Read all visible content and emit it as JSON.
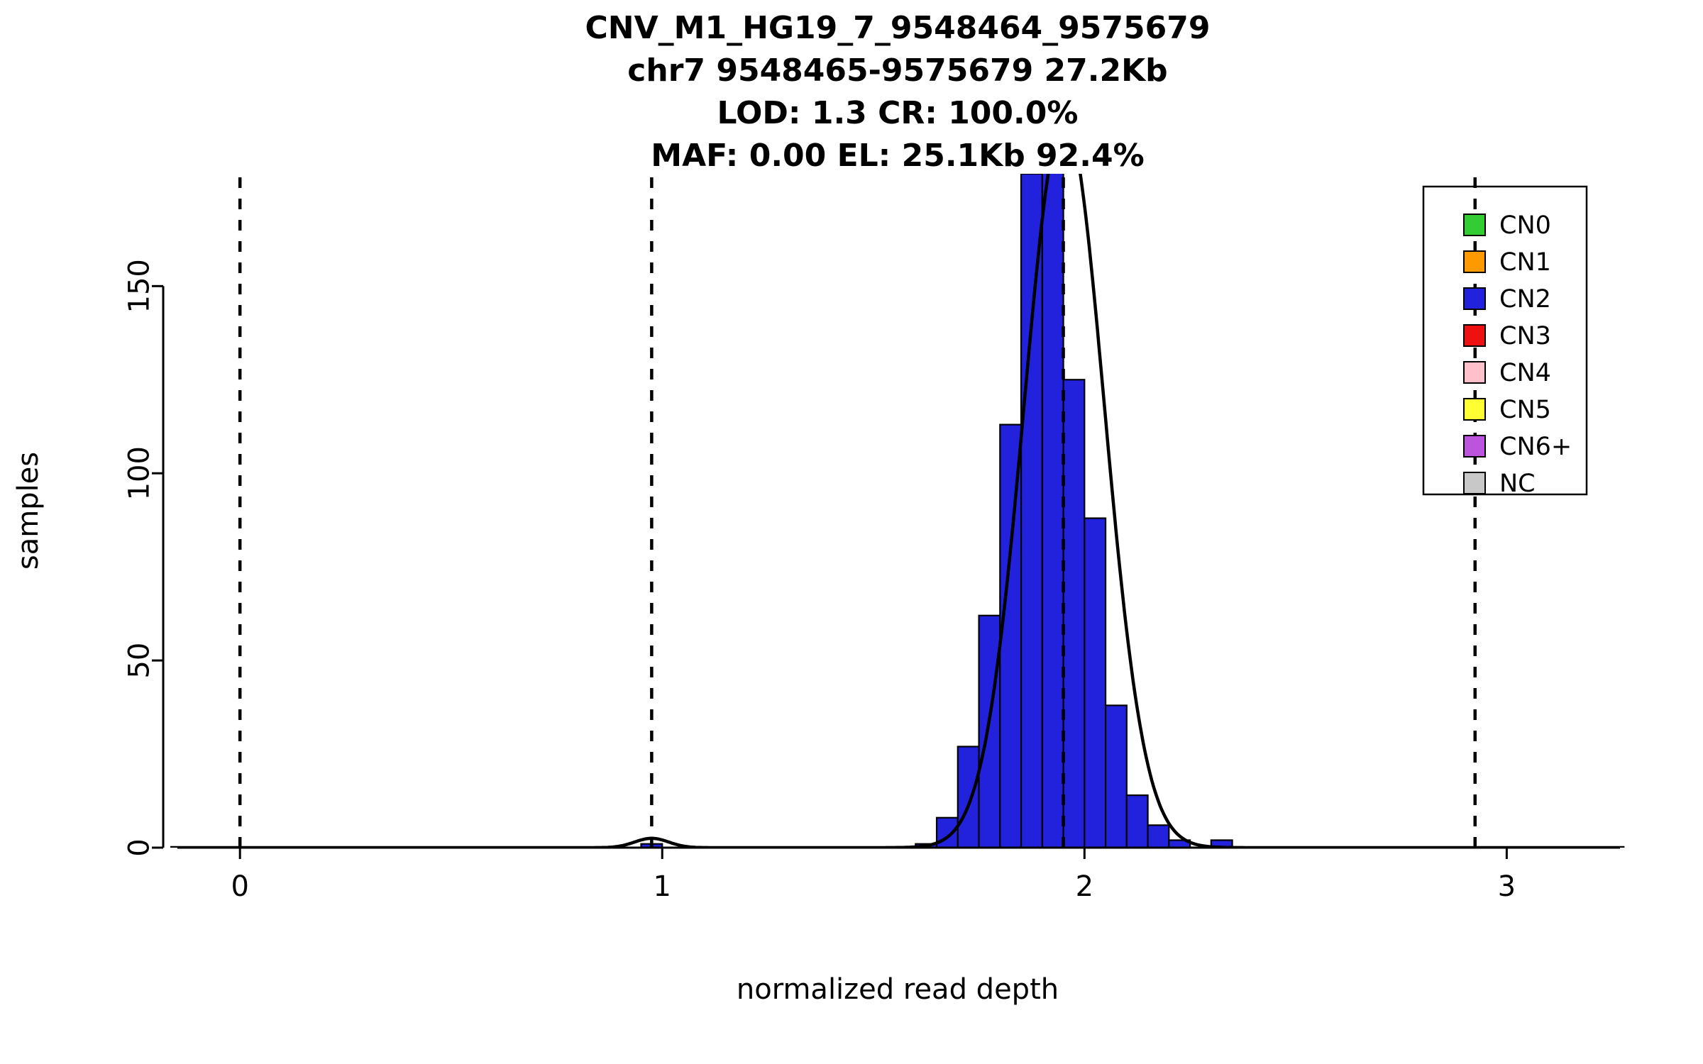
{
  "chart_data": {
    "type": "bar",
    "subtype": "histogram",
    "title_lines": [
      "CNV_M1_HG19_7_9548464_9575679",
      "chr7 9548465-9575679 27.2Kb",
      "LOD: 1.3 CR: 100.0%",
      "MAF: 0.00 EL: 25.1Kb 92.4%"
    ],
    "xlabel": "normalized read depth",
    "ylabel": "samples",
    "xlim": [
      -0.165,
      3.28
    ],
    "ylim": [
      0,
      180
    ],
    "x_ticks": [
      0,
      1,
      2,
      3
    ],
    "y_ticks": [
      0,
      50,
      100,
      150
    ],
    "grid": false,
    "histogram": {
      "bin_width": 0.05,
      "bar_color": "#2222dd",
      "bar_edge_color": "#000000",
      "bins": [
        {
          "x0": 0.95,
          "count": 1
        },
        {
          "x0": 1.6,
          "count": 1
        },
        {
          "x0": 1.65,
          "count": 8
        },
        {
          "x0": 1.7,
          "count": 27
        },
        {
          "x0": 1.75,
          "count": 62
        },
        {
          "x0": 1.8,
          "count": 113
        },
        {
          "x0": 1.85,
          "count": 180
        },
        {
          "x0": 1.9,
          "count": 182
        },
        {
          "x0": 1.95,
          "count": 125
        },
        {
          "x0": 2.0,
          "count": 88
        },
        {
          "x0": 2.05,
          "count": 38
        },
        {
          "x0": 2.1,
          "count": 14
        },
        {
          "x0": 2.15,
          "count": 6
        },
        {
          "x0": 2.2,
          "count": 2
        },
        {
          "x0": 2.3,
          "count": 2
        }
      ]
    },
    "fit_curve": {
      "color": "#000000",
      "components": [
        {
          "mean": 1.952,
          "sd": 0.095,
          "amp": 195
        },
        {
          "mean": 0.975,
          "sd": 0.04,
          "amp": 2.5
        }
      ]
    },
    "cn_dashed_lines": {
      "color": "#000000",
      "style": "dashed",
      "positions": [
        0,
        0.975,
        1.95,
        2.925
      ]
    },
    "legend": {
      "position": "top-right",
      "items": [
        {
          "label": "CN0",
          "color": "#33cc33"
        },
        {
          "label": "CN1",
          "color": "#ff9900"
        },
        {
          "label": "CN2",
          "color": "#2222dd"
        },
        {
          "label": "CN3",
          "color": "#ee1111"
        },
        {
          "label": "CN4",
          "color": "#ffc0cb"
        },
        {
          "label": "CN5",
          "color": "#ffff33"
        },
        {
          "label": "CN6+",
          "color": "#bb55dd"
        },
        {
          "label": "NC",
          "color": "#c8c8c8"
        }
      ]
    }
  }
}
